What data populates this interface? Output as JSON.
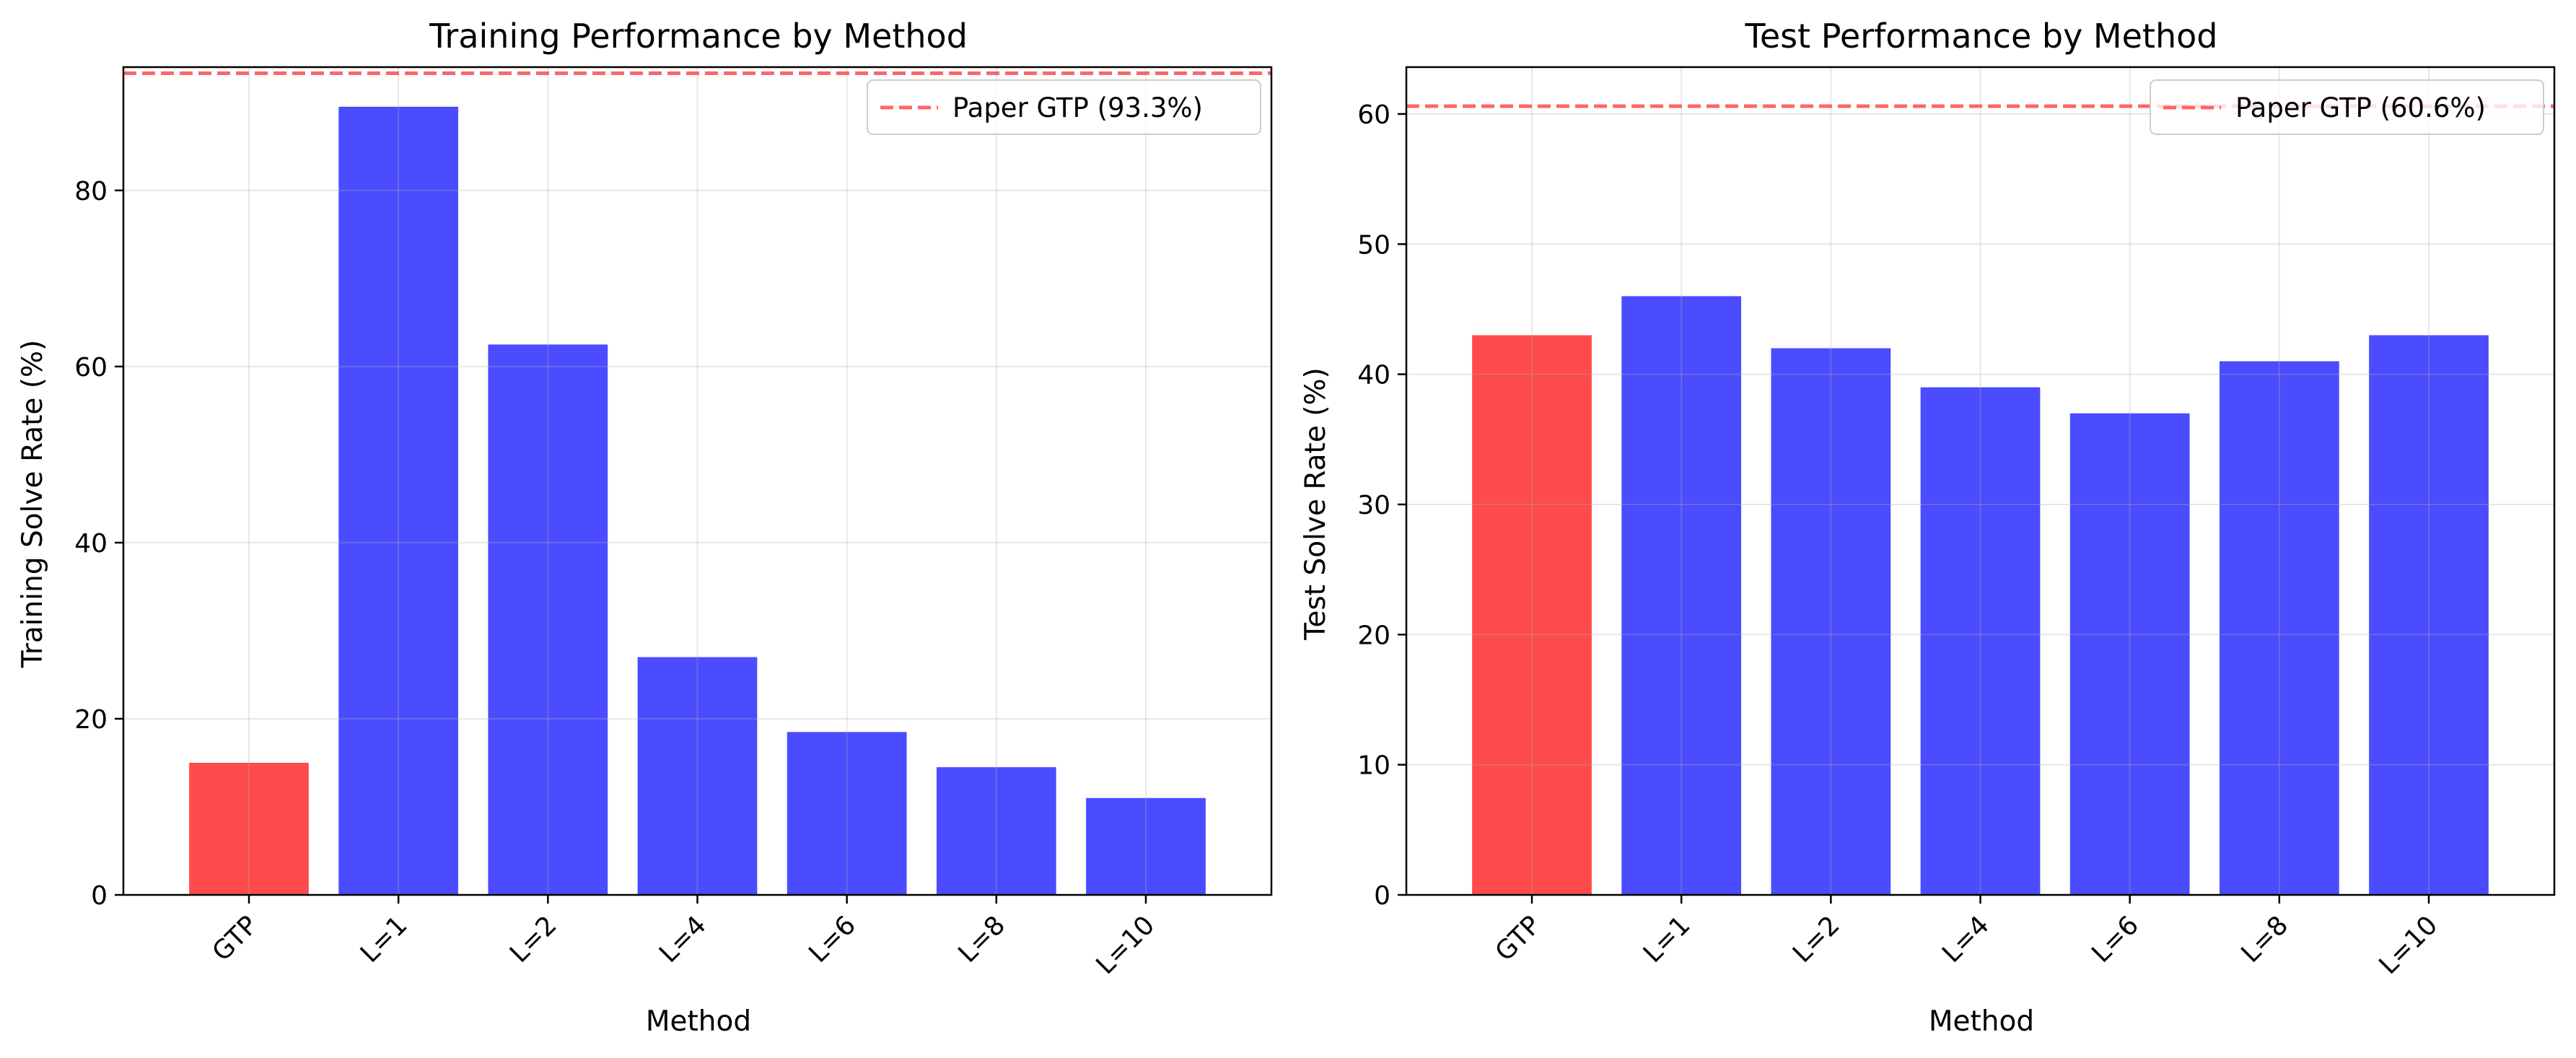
{
  "chart_data": [
    {
      "type": "bar",
      "title": "Training Performance by Method",
      "xlabel": "Method",
      "ylabel": "Training Solve Rate (%)",
      "categories": [
        "GTP",
        "L=1",
        "L=2",
        "L=4",
        "L=6",
        "L=8",
        "L=10"
      ],
      "values": [
        15.0,
        89.5,
        62.5,
        27.0,
        18.5,
        14.5,
        11.0
      ],
      "bar_colors": [
        "#ff4b4b",
        "#4b4bff",
        "#4b4bff",
        "#4b4bff",
        "#4b4bff",
        "#4b4bff",
        "#4b4bff"
      ],
      "ylim": [
        0,
        94
      ],
      "yticks": [
        0,
        20,
        40,
        60,
        80
      ],
      "grid": true,
      "reference_line": {
        "value": 93.3,
        "label": "Paper GTP (93.3%)",
        "color": "#ff4b4b",
        "style": "dashed"
      },
      "legend": {
        "position": "top-right",
        "entries": [
          "Paper GTP (93.3%)"
        ]
      }
    },
    {
      "type": "bar",
      "title": "Test Performance by Method",
      "xlabel": "Method",
      "ylabel": "Test Solve Rate (%)",
      "categories": [
        "GTP",
        "L=1",
        "L=2",
        "L=4",
        "L=6",
        "L=8",
        "L=10"
      ],
      "values": [
        43,
        46,
        42,
        39,
        37,
        41,
        43
      ],
      "bar_colors": [
        "#ff4b4b",
        "#4b4bff",
        "#4b4bff",
        "#4b4bff",
        "#4b4bff",
        "#4b4bff",
        "#4b4bff"
      ],
      "ylim": [
        0,
        63.6
      ],
      "yticks": [
        0,
        10,
        20,
        30,
        40,
        50,
        60
      ],
      "grid": true,
      "reference_line": {
        "value": 60.6,
        "label": "Paper GTP (60.6%)",
        "color": "#ff4b4b",
        "style": "dashed"
      },
      "legend": {
        "position": "top-right",
        "entries": [
          "Paper GTP (60.6%)"
        ]
      }
    }
  ]
}
